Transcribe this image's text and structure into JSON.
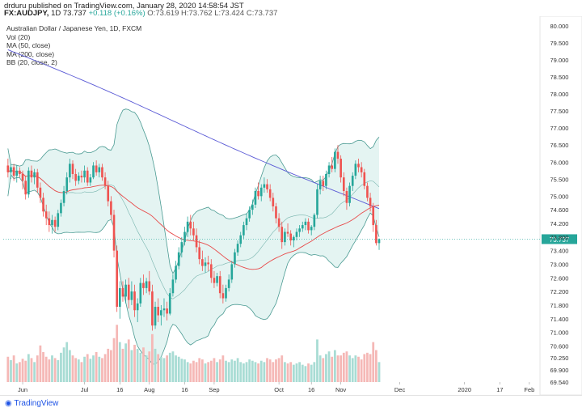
{
  "header": {
    "publisher_line": "drduru published on TradingView.com, January 28, 2020 14:58:54 JST",
    "symbol": "FX:AUDJPY,",
    "interval": "1D",
    "last": "73.737",
    "change": "+0.118 (+0.16%)",
    "ohlc": "O:73.619 H:73.762 L:73.424 C:73.737"
  },
  "legend": {
    "title": "Australian Dollar / Japanese Yen, 1D, FXCM",
    "vol": "Vol (20)",
    "ma50": "MA (50, close)",
    "ma200": "MA (200, close)",
    "bb": "BB (20, close, 2)"
  },
  "footer": {
    "logo_text": "TradingView"
  },
  "colors": {
    "up": "#26a69a",
    "down": "#ef5350",
    "ma50": "#e84b4b",
    "ma200": "#5b5bd6",
    "bb_line": "#4a9a92",
    "bb_fill": "#d9f0ec",
    "vol_up": "#a8dcd4",
    "vol_down": "#f5b8b6",
    "vol_ma": "#f2a08a",
    "last_label": "#26a69a"
  },
  "chart_data": {
    "type": "candlestick",
    "title": "Australian Dollar / Japanese Yen, 1D, FXCM",
    "ylim": [
      69.54,
      80.0
    ],
    "y_ticks": [
      "80.000",
      "79.500",
      "79.000",
      "78.500",
      "78.000",
      "77.500",
      "77.000",
      "76.500",
      "76.000",
      "75.500",
      "75.000",
      "74.600",
      "74.200",
      "73.800",
      "73.400",
      "73.000",
      "72.600",
      "72.200",
      "71.800",
      "71.400",
      "71.000",
      "70.600",
      "70.250",
      "69.900",
      "69.540"
    ],
    "y_tick_values": [
      80.0,
      79.5,
      79.0,
      78.5,
      78.0,
      77.5,
      77.0,
      76.5,
      76.0,
      75.5,
      75.0,
      74.6,
      74.2,
      73.8,
      73.4,
      73.0,
      72.6,
      72.2,
      71.8,
      71.4,
      71.0,
      70.6,
      70.25,
      69.9,
      69.54
    ],
    "last_price": "73.737",
    "x_labels": [
      "Jun",
      "Jul",
      "16",
      "Aug",
      "16",
      "Sep",
      "Oct",
      "16",
      "Nov",
      "Dec",
      "2020",
      "17",
      "Feb"
    ],
    "x_label_days": [
      5,
      26,
      38,
      48,
      60,
      70,
      92,
      103,
      113,
      133,
      155,
      167,
      177
    ],
    "ohlc": [
      [
        75.9,
        76.1,
        75.55,
        75.7
      ],
      [
        75.7,
        75.95,
        75.5,
        75.85
      ],
      [
        75.85,
        75.95,
        75.45,
        75.6
      ],
      [
        75.6,
        75.9,
        75.4,
        75.75
      ],
      [
        75.75,
        75.85,
        75.55,
        75.65
      ],
      [
        75.65,
        75.75,
        75.2,
        75.45
      ],
      [
        75.45,
        75.6,
        74.9,
        75.05
      ],
      [
        75.05,
        75.85,
        74.95,
        75.75
      ],
      [
        75.75,
        75.9,
        75.4,
        75.55
      ],
      [
        75.55,
        75.8,
        75.35,
        75.7
      ],
      [
        75.7,
        75.8,
        75.1,
        75.25
      ],
      [
        75.25,
        75.4,
        74.8,
        74.95
      ],
      [
        74.95,
        75.1,
        74.4,
        74.55
      ],
      [
        74.55,
        74.75,
        74.15,
        74.35
      ],
      [
        74.35,
        74.55,
        73.95,
        74.15
      ],
      [
        74.15,
        74.45,
        73.9,
        74.3
      ],
      [
        74.3,
        74.4,
        73.95,
        74.1
      ],
      [
        74.1,
        74.6,
        74.0,
        74.5
      ],
      [
        74.5,
        74.9,
        74.4,
        74.8
      ],
      [
        74.8,
        75.3,
        74.7,
        75.15
      ],
      [
        75.15,
        75.7,
        75.05,
        75.55
      ],
      [
        75.55,
        76.1,
        75.4,
        75.95
      ],
      [
        75.95,
        76.05,
        75.5,
        75.65
      ],
      [
        75.65,
        75.8,
        75.3,
        75.45
      ],
      [
        75.45,
        75.7,
        75.35,
        75.6
      ],
      [
        75.6,
        75.75,
        75.4,
        75.55
      ],
      [
        75.55,
        75.9,
        75.4,
        75.75
      ],
      [
        75.75,
        75.85,
        75.3,
        75.4
      ],
      [
        75.4,
        75.65,
        75.3,
        75.55
      ],
      [
        75.55,
        76.0,
        75.5,
        75.9
      ],
      [
        75.9,
        76.05,
        75.6,
        75.7
      ],
      [
        75.7,
        75.95,
        75.55,
        75.85
      ],
      [
        75.85,
        75.95,
        75.45,
        75.55
      ],
      [
        75.55,
        75.7,
        75.2,
        75.3
      ],
      [
        75.3,
        75.45,
        74.7,
        74.85
      ],
      [
        74.85,
        75.0,
        74.3,
        74.45
      ],
      [
        74.45,
        74.6,
        73.2,
        73.4
      ],
      [
        73.4,
        73.55,
        71.6,
        71.75
      ],
      [
        71.75,
        72.5,
        71.4,
        72.3
      ],
      [
        72.3,
        72.5,
        71.9,
        72.05
      ],
      [
        72.05,
        72.55,
        71.85,
        72.4
      ],
      [
        72.4,
        72.6,
        71.7,
        71.95
      ],
      [
        71.95,
        72.5,
        71.8,
        72.2
      ],
      [
        72.2,
        72.4,
        71.45,
        71.65
      ],
      [
        71.65,
        72.0,
        71.3,
        71.85
      ],
      [
        71.85,
        72.6,
        71.75,
        72.45
      ],
      [
        72.45,
        72.7,
        72.1,
        72.3
      ],
      [
        72.3,
        72.6,
        72.15,
        72.5
      ],
      [
        72.5,
        72.8,
        72.1,
        72.2
      ],
      [
        72.2,
        72.4,
        71.05,
        71.2
      ],
      [
        71.2,
        71.9,
        71.1,
        71.75
      ],
      [
        71.75,
        72.0,
        71.3,
        71.5
      ],
      [
        71.5,
        71.8,
        71.2,
        71.65
      ],
      [
        71.65,
        72.0,
        71.45,
        71.7
      ],
      [
        71.7,
        71.9,
        71.35,
        71.55
      ],
      [
        71.55,
        72.3,
        71.5,
        72.15
      ],
      [
        72.15,
        72.7,
        72.05,
        72.55
      ],
      [
        72.55,
        73.1,
        72.45,
        72.95
      ],
      [
        72.95,
        73.5,
        72.85,
        73.35
      ],
      [
        73.35,
        73.8,
        73.2,
        73.65
      ],
      [
        73.65,
        74.1,
        73.55,
        73.95
      ],
      [
        73.95,
        74.4,
        73.8,
        74.25
      ],
      [
        74.25,
        74.45,
        73.85,
        74.05
      ],
      [
        74.05,
        74.25,
        73.7,
        73.85
      ],
      [
        73.85,
        74.05,
        73.35,
        73.5
      ],
      [
        73.5,
        73.7,
        73.0,
        73.15
      ],
      [
        73.15,
        73.4,
        72.8,
        72.95
      ],
      [
        72.95,
        73.2,
        72.75,
        73.05
      ],
      [
        73.05,
        73.25,
        72.8,
        73.0
      ],
      [
        73.0,
        73.15,
        72.45,
        72.6
      ],
      [
        72.6,
        72.8,
        72.3,
        72.45
      ],
      [
        72.45,
        72.75,
        72.35,
        72.65
      ],
      [
        72.65,
        72.8,
        72.0,
        72.15
      ],
      [
        72.15,
        72.4,
        71.85,
        72.0
      ],
      [
        72.0,
        72.4,
        71.9,
        72.3
      ],
      [
        72.3,
        72.7,
        72.2,
        72.55
      ],
      [
        72.55,
        73.1,
        72.45,
        73.0
      ],
      [
        73.0,
        73.45,
        72.9,
        73.35
      ],
      [
        73.35,
        73.7,
        73.25,
        73.6
      ],
      [
        73.6,
        73.95,
        73.5,
        73.85
      ],
      [
        73.85,
        74.25,
        73.75,
        74.15
      ],
      [
        74.15,
        74.5,
        74.0,
        74.35
      ],
      [
        74.35,
        74.7,
        74.25,
        74.6
      ],
      [
        74.6,
        74.9,
        74.45,
        74.75
      ],
      [
        74.75,
        75.25,
        74.65,
        75.15
      ],
      [
        75.15,
        75.4,
        74.9,
        75.0
      ],
      [
        75.0,
        75.35,
        74.85,
        75.25
      ],
      [
        75.25,
        75.55,
        75.1,
        75.35
      ],
      [
        75.35,
        75.5,
        75.1,
        75.2
      ],
      [
        75.2,
        75.35,
        74.85,
        74.95
      ],
      [
        74.95,
        75.1,
        74.55,
        74.7
      ],
      [
        74.7,
        74.8,
        74.2,
        74.35
      ],
      [
        74.35,
        74.5,
        73.95,
        74.1
      ],
      [
        74.1,
        74.25,
        73.45,
        73.65
      ],
      [
        73.65,
        74.05,
        73.55,
        73.95
      ],
      [
        73.95,
        74.2,
        73.8,
        73.9
      ],
      [
        73.9,
        74.0,
        73.55,
        73.7
      ],
      [
        73.7,
        73.85,
        73.5,
        73.8
      ],
      [
        73.8,
        74.05,
        73.7,
        73.95
      ],
      [
        73.95,
        74.15,
        73.8,
        74.05
      ],
      [
        74.05,
        74.25,
        73.95,
        74.15
      ],
      [
        74.15,
        74.35,
        74.0,
        74.25
      ],
      [
        74.25,
        74.35,
        73.9,
        74.0
      ],
      [
        74.0,
        74.15,
        73.85,
        74.1
      ],
      [
        74.1,
        74.5,
        74.0,
        74.45
      ],
      [
        74.45,
        75.35,
        74.35,
        75.2
      ],
      [
        75.2,
        75.6,
        75.05,
        75.45
      ],
      [
        75.45,
        75.6,
        75.15,
        75.3
      ],
      [
        75.3,
        75.75,
        75.2,
        75.65
      ],
      [
        75.65,
        76.0,
        75.55,
        75.9
      ],
      [
        75.9,
        76.15,
        75.7,
        75.8
      ],
      [
        75.8,
        76.4,
        75.7,
        76.3
      ],
      [
        76.3,
        76.5,
        75.95,
        76.1
      ],
      [
        76.1,
        76.2,
        75.4,
        75.55
      ],
      [
        75.55,
        75.7,
        75.0,
        75.15
      ],
      [
        75.15,
        75.25,
        74.6,
        74.8
      ],
      [
        74.8,
        75.4,
        74.7,
        75.3
      ],
      [
        75.3,
        75.7,
        75.15,
        75.6
      ],
      [
        75.6,
        76.05,
        75.5,
        75.95
      ],
      [
        75.95,
        76.1,
        75.7,
        75.85
      ],
      [
        75.85,
        76.0,
        75.55,
        75.7
      ],
      [
        75.7,
        75.8,
        75.2,
        75.3
      ],
      [
        75.3,
        75.4,
        74.85,
        74.95
      ],
      [
        74.95,
        75.1,
        74.55,
        74.7
      ],
      [
        74.7,
        74.8,
        73.95,
        74.15
      ],
      [
        74.15,
        74.3,
        73.55,
        73.62
      ],
      [
        73.62,
        73.76,
        73.42,
        73.74
      ]
    ],
    "volume": [
      0.38,
      0.33,
      0.4,
      0.28,
      0.3,
      0.35,
      0.32,
      0.42,
      0.36,
      0.3,
      0.4,
      0.55,
      0.45,
      0.38,
      0.34,
      0.4,
      0.36,
      0.33,
      0.44,
      0.52,
      0.6,
      0.48,
      0.4,
      0.36,
      0.34,
      0.3,
      0.38,
      0.42,
      0.35,
      0.4,
      0.45,
      0.38,
      0.36,
      0.42,
      0.5,
      0.48,
      0.66,
      0.86,
      0.6,
      0.5,
      0.58,
      0.64,
      0.48,
      0.56,
      0.5,
      0.44,
      0.52,
      0.4,
      0.46,
      0.72,
      0.5,
      0.42,
      0.38,
      0.36,
      0.4,
      0.44,
      0.46,
      0.4,
      0.38,
      0.35,
      0.34,
      0.3,
      0.28,
      0.32,
      0.3,
      0.36,
      0.34,
      0.28,
      0.3,
      0.32,
      0.36,
      0.3,
      0.34,
      0.4,
      0.32,
      0.3,
      0.34,
      0.32,
      0.36,
      0.3,
      0.28,
      0.3,
      0.34,
      0.32,
      0.3,
      0.28,
      0.32,
      0.3,
      0.36,
      0.34,
      0.3,
      0.34,
      0.36,
      0.4,
      0.3,
      0.28,
      0.3,
      0.26,
      0.28,
      0.3,
      0.26,
      0.24,
      0.28,
      0.26,
      0.3,
      0.64,
      0.4,
      0.36,
      0.42,
      0.46,
      0.38,
      0.48,
      0.4,
      0.4,
      0.44,
      0.46,
      0.4,
      0.36,
      0.4,
      0.38,
      0.34,
      0.42,
      0.44,
      0.42,
      0.6,
      0.48,
      0.3
    ]
  }
}
